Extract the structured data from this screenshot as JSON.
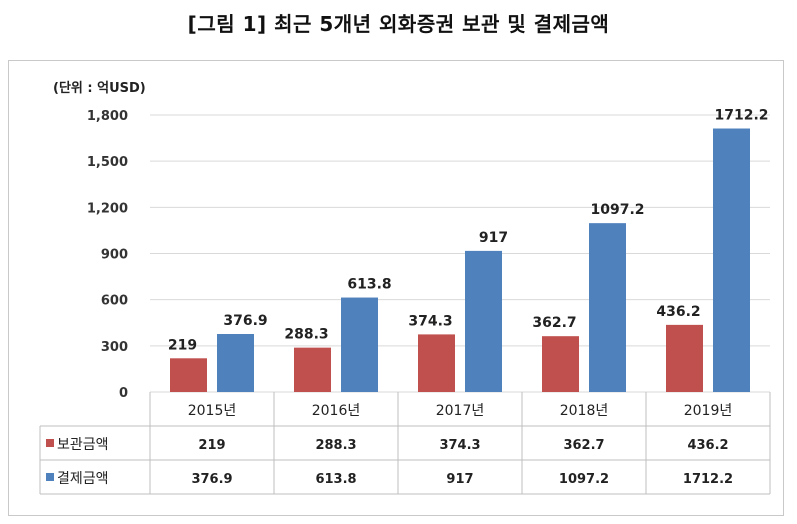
{
  "title": "[그림 1] 최근 5개년 외화증권 보관 및 결제금액",
  "chart_data": {
    "type": "bar",
    "unit_label": "(단위 : 억USD)",
    "categories": [
      "2015년",
      "2016년",
      "2017년",
      "2018년",
      "2019년"
    ],
    "series": [
      {
        "name": "보관금액",
        "color": "#c0504d",
        "values": [
          219,
          288.3,
          374.3,
          362.7,
          436.2
        ],
        "labels": [
          "219",
          "288.3",
          "374.3",
          "362.7",
          "436.2"
        ]
      },
      {
        "name": "결제금액",
        "color": "#4f81bd",
        "values": [
          376.9,
          613.8,
          917,
          1097.2,
          1712.2
        ],
        "labels": [
          "376.9",
          "613.8",
          "917",
          "1097.2",
          "1712.2"
        ]
      }
    ],
    "ylim": [
      0,
      1800
    ],
    "yticks": [
      0,
      300,
      600,
      900,
      1200,
      1500,
      1800
    ],
    "ytick_labels": [
      "0",
      "300",
      "600",
      "900",
      "1,200",
      "1,500",
      "1,800"
    ],
    "grid": true,
    "legend": "data-table-rows"
  }
}
